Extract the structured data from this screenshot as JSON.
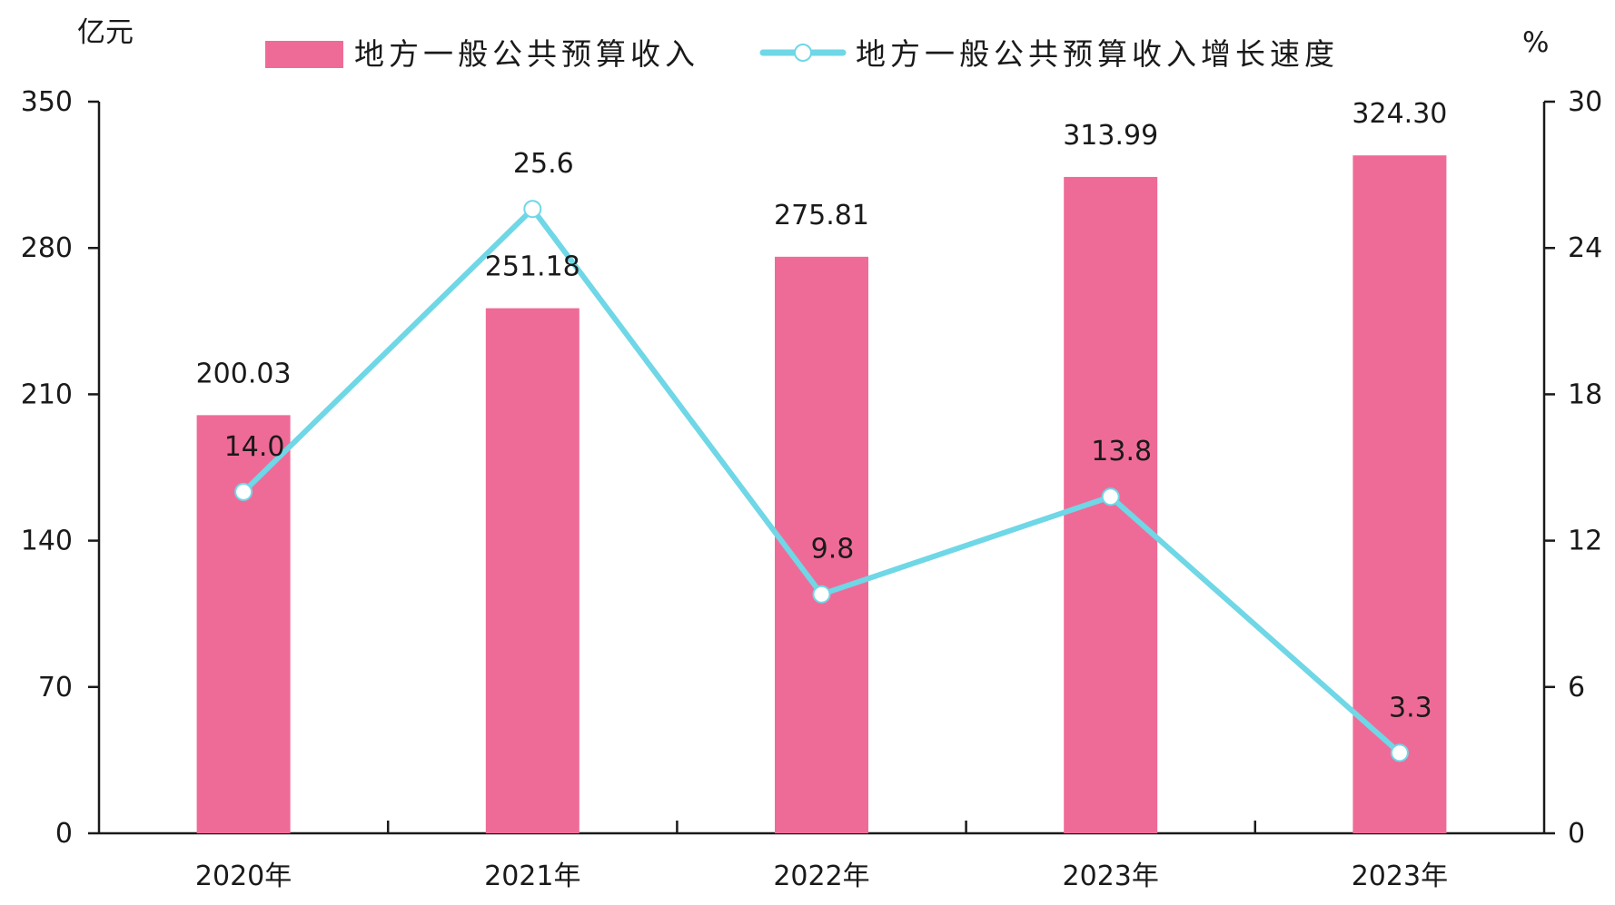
{
  "chart_data": {
    "type": "bar",
    "categories": [
      "2020年",
      "2021年",
      "2022年",
      "2023年",
      "2023年"
    ],
    "series": [
      {
        "name": "地方一般公共预算收入",
        "kind": "bar",
        "axis": "left",
        "color": "#ef6b97",
        "values": [
          200.03,
          251.18,
          275.81,
          313.99,
          324.3
        ],
        "labels": [
          "200.03",
          "251.18",
          "275.81",
          "313.99",
          "324.30"
        ]
      },
      {
        "name": "地方一般公共预算收入增长速度",
        "kind": "line",
        "axis": "right",
        "color": "#6fd7e6",
        "marker_fill": "#ffffff",
        "values": [
          14.0,
          25.6,
          9.8,
          13.8,
          3.3
        ],
        "labels": [
          "14.0",
          "25.6",
          "9.8",
          "13.8",
          "3.3"
        ]
      }
    ],
    "ylabel_left": "亿元",
    "ylabel_right": "%",
    "ylim_left": [
      0,
      350
    ],
    "ylim_right": [
      0,
      30
    ],
    "yticks_left": [
      "0",
      "70",
      "140",
      "210",
      "280",
      "350"
    ],
    "yticks_right": [
      "0",
      "6",
      "12",
      "18",
      "24",
      "30"
    ],
    "legend": "top-center",
    "grid": false
  }
}
